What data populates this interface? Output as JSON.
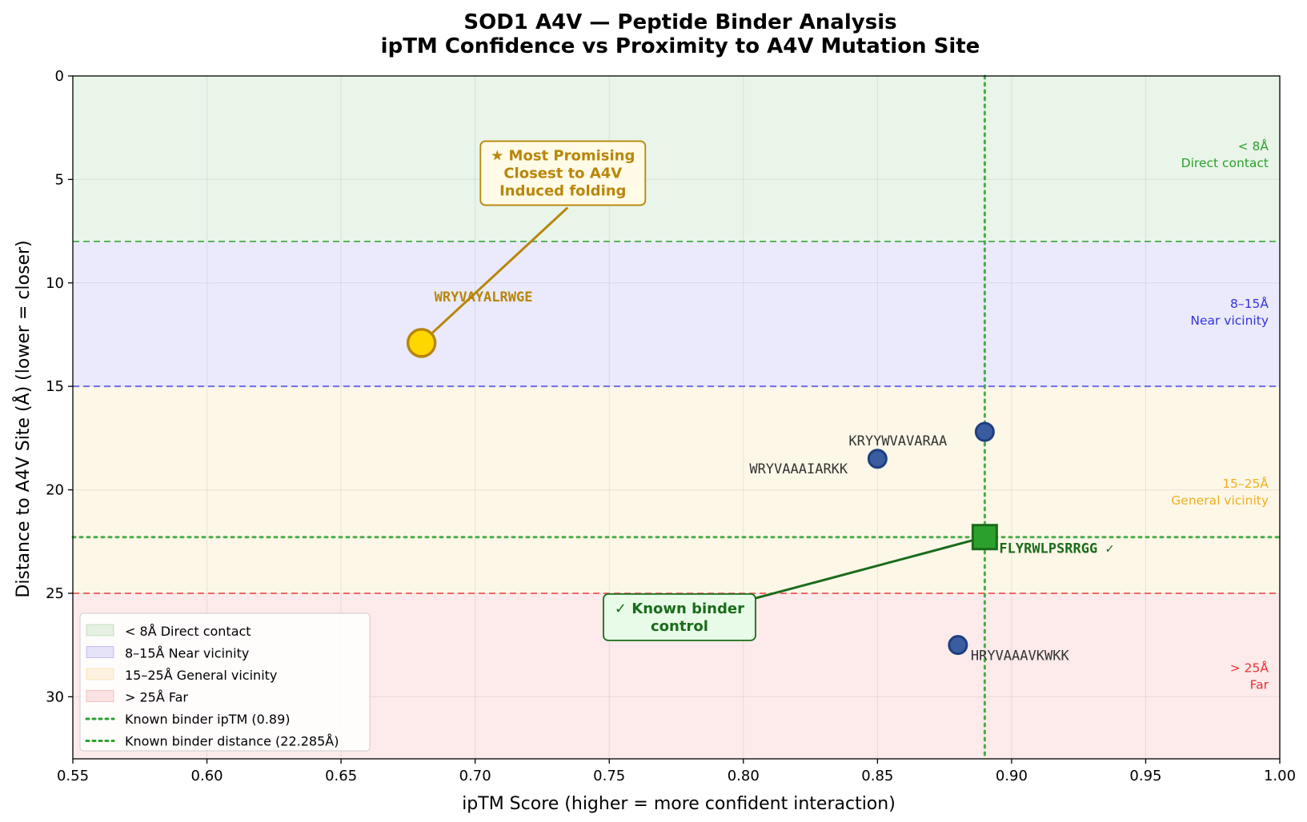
{
  "chart_data": {
    "type": "scatter",
    "title_line1": "SOD1 A4V — Peptide Binder Analysis",
    "title_line2": "ipTM Confidence vs Proximity to A4V Mutation Site",
    "xlabel": "ipTM Score  (higher = more confident interaction)",
    "ylabel": "Distance to A4V Site (Å)  (lower = closer)",
    "xlim": [
      0.55,
      1.0
    ],
    "ylim": [
      0,
      33
    ],
    "y_inverted": true,
    "grid": true,
    "x_ticks": [
      0.55,
      0.6,
      0.65,
      0.7,
      0.75,
      0.8,
      0.85,
      0.9,
      0.95,
      1.0
    ],
    "x_tick_labels": [
      "0.55",
      "0.60",
      "0.65",
      "0.70",
      "0.75",
      "0.80",
      "0.85",
      "0.90",
      "0.95",
      "1.00"
    ],
    "y_ticks": [
      0,
      5,
      10,
      15,
      20,
      25,
      30
    ],
    "y_tick_labels": [
      "0",
      "5",
      "10",
      "15",
      "20",
      "25",
      "30"
    ],
    "bands": [
      {
        "from": 0,
        "to": 8,
        "color": "#2ca02c",
        "label_range": "< 8Å",
        "label_desc": "Direct contact",
        "legend": "< 8Å  Direct contact"
      },
      {
        "from": 8,
        "to": 15,
        "color": "#3333dd",
        "label_range": "8–15Å",
        "label_desc": "Near vicinity",
        "legend": "8–15Å  Near vicinity"
      },
      {
        "from": 15,
        "to": 25,
        "color": "#f0b020",
        "label_range": "15–25Å",
        "label_desc": "General vicinity",
        "legend": "15–25Å  General vicinity"
      },
      {
        "from": 25,
        "to": 33,
        "color": "#e83030",
        "label_range": "> 25Å",
        "label_desc": "Far",
        "legend": "> 25Å  Far"
      }
    ],
    "points": [
      {
        "name": "WRYVAYALRWGE",
        "ipTM": 0.68,
        "distance": 12.9,
        "kind": "promising",
        "color": "#ffd700",
        "edge": "#b8860b"
      },
      {
        "name": "KRYYWVAVARAA",
        "ipTM": 0.89,
        "distance": 17.2,
        "kind": "candidate",
        "color": "#3a5da0",
        "edge": "#1f3f80"
      },
      {
        "name": "WRYVAAAIARKK",
        "ipTM": 0.85,
        "distance": 18.5,
        "kind": "candidate",
        "color": "#3a5da0",
        "edge": "#1f3f80"
      },
      {
        "name": "HRYVAAAVKWKK",
        "ipTM": 0.88,
        "distance": 27.5,
        "kind": "candidate",
        "color": "#3a5da0",
        "edge": "#1f3f80"
      },
      {
        "name": "FLYRWLPSRRGG ✓",
        "ipTM": 0.89,
        "distance": 22.285,
        "kind": "known",
        "color": "#2ca02c",
        "edge": "#1a6b1a"
      }
    ],
    "reference_lines": [
      {
        "axis": "x",
        "value": 0.89,
        "legend": "Known binder ipTM (0.89)",
        "color": "#2ca02c"
      },
      {
        "axis": "y",
        "value": 22.285,
        "legend": "Known binder distance (22.285Å)",
        "color": "#2ca02c"
      }
    ],
    "annotations": {
      "promising": {
        "lines": [
          "★ Most Promising",
          "Closest to A4V",
          "Induced folding"
        ],
        "color": "#b8860b",
        "bg": "#fffbe6",
        "anchor_ipTM": 0.7345,
        "anchor_distance": 5.2
      },
      "known": {
        "lines": [
          "✓ Known binder",
          "control"
        ],
        "color": "#1a6b1a",
        "bg": "#e8fbe8",
        "anchor_ipTM": 0.772,
        "anchor_distance": 26.0
      }
    },
    "legend_position": "lower-left"
  }
}
